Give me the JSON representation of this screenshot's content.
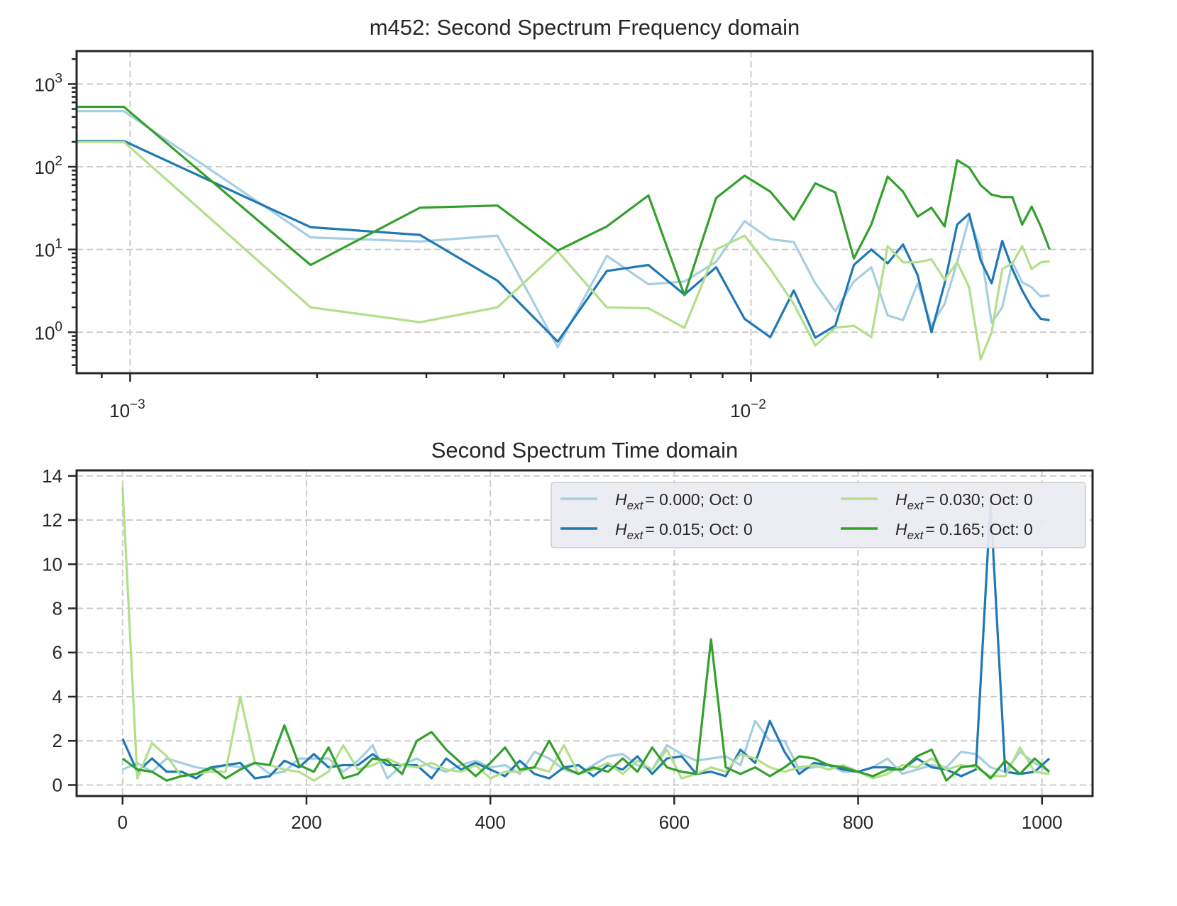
{
  "chart_data": [
    {
      "type": "line",
      "title": "m452: Second Spectrum Frequency domain",
      "xscale": "log",
      "yscale": "log",
      "xlim": [
        0.00082,
        0.0355
      ],
      "ylim": [
        0.32,
        2500
      ],
      "grid": true,
      "x_tick_labels": [
        {
          "value": 0.001,
          "base": "10",
          "exp": "−3"
        },
        {
          "value": 0.01,
          "base": "10",
          "exp": "−2"
        }
      ],
      "y_tick_labels": [
        {
          "value": 1,
          "base": "10",
          "exp": "0"
        },
        {
          "value": 10,
          "base": "10",
          "exp": "1"
        },
        {
          "value": 100,
          "base": "10",
          "exp": "2"
        },
        {
          "value": 1000,
          "base": "10",
          "exp": "3"
        }
      ],
      "x": [
        0.000977,
        0.001953,
        0.00293,
        0.003906,
        0.004883,
        0.005859,
        0.006836,
        0.007813,
        0.008789,
        0.009766,
        0.010742,
        0.011719,
        0.012695,
        0.013672,
        0.014648,
        0.015625,
        0.016602,
        0.017578,
        0.018555,
        0.019531,
        0.020508,
        0.021484,
        0.022461,
        0.023438,
        0.024414,
        0.025391,
        0.026367,
        0.027344,
        0.02832,
        0.029297,
        0.030273
      ],
      "series": [
        {
          "name": "H_ext = 0.000; Oct: 0",
          "color": "#a6cee3",
          "values": [
            470,
            14,
            12.5,
            14.7,
            0.66,
            8.4,
            3.8,
            4.1,
            7.1,
            22,
            13.3,
            12.3,
            3.9,
            1.8,
            4.1,
            6.1,
            1.6,
            1.4,
            3.9,
            1.2,
            2.2,
            7.1,
            24,
            10,
            1.3,
            2.0,
            7,
            4,
            3.5,
            2.7,
            2.8
          ]
        },
        {
          "name": "H_ext = 0.015; Oct: 0",
          "color": "#1f78b4",
          "values": [
            205,
            18.6,
            15,
            4.2,
            0.77,
            5.5,
            6.5,
            2.85,
            6.1,
            1.45,
            0.87,
            3.2,
            0.86,
            1.2,
            6.5,
            10,
            6.8,
            11.5,
            4.9,
            1.0,
            3.9,
            20,
            27,
            7.4,
            3.9,
            12.7,
            5.8,
            3.2,
            2.0,
            1.45,
            1.4
          ]
        },
        {
          "name": "H_ext = 0.030; Oct: 0",
          "color": "#b2df8a",
          "values": [
            200,
            2.0,
            1.32,
            2.0,
            9.5,
            2.0,
            1.95,
            1.13,
            10,
            14.7,
            5.8,
            2.2,
            0.69,
            1.13,
            1.2,
            0.87,
            11,
            7,
            7,
            7.6,
            4.3,
            7,
            3.5,
            0.47,
            1.0,
            5.8,
            6.8,
            11,
            5.8,
            7,
            7.2
          ]
        },
        {
          "name": "H_ext = 0.165; Oct: 0",
          "color": "#33a02c",
          "values": [
            530,
            6.5,
            32,
            34,
            9.7,
            19,
            45,
            2.8,
            42,
            78,
            50,
            23,
            63,
            49,
            7.8,
            20,
            76,
            50,
            25,
            32,
            19,
            120,
            98,
            60,
            46,
            43,
            43,
            20,
            33,
            19,
            10
          ]
        }
      ]
    },
    {
      "type": "line",
      "title": "Second Spectrum Time domain",
      "xlim": [
        -50,
        1055
      ],
      "ylim": [
        -0.5,
        14.25
      ],
      "grid": true,
      "x_step": 16,
      "x_ticks": [
        "0",
        "200",
        "400",
        "600",
        "800",
        "1000"
      ],
      "y_ticks": [
        "0",
        "2",
        "4",
        "6",
        "8",
        "10",
        "12",
        "14"
      ],
      "legend": {
        "placement": "top-right",
        "entries": [
          {
            "symbol": "H",
            "subscript": "ext",
            "text": "=  0.000; Oct: 0",
            "color": "#a6cee3"
          },
          {
            "symbol": "H",
            "subscript": "ext",
            "text": "=  0.015; Oct: 0",
            "color": "#1f78b4"
          },
          {
            "symbol": "H",
            "subscript": "ext",
            "text": "=  0.030; Oct: 0",
            "color": "#b2df8a"
          },
          {
            "symbol": "H",
            "subscript": "ext",
            "text": "=  0.165; Oct: 0",
            "color": "#33a02c"
          }
        ]
      },
      "series": [
        {
          "name": "H_ext = 0.000; Oct: 0",
          "color": "#a6cee3",
          "values": [
            0.7,
            1.0,
            0.6,
            1.2,
            1.0,
            0.8,
            0.7,
            0.9,
            0.8,
            1.0,
            0.5,
            0.6,
            1.2,
            1.2,
            1.2,
            0.6,
            1.1,
            1.8,
            0.3,
            0.9,
            1.2,
            0.8,
            0.6,
            0.9,
            1.1,
            0.8,
            0.9,
            0.5,
            1.5,
            1.2,
            0.7,
            0.5,
            0.9,
            1.3,
            1.4,
            0.9,
            0.7,
            1.8,
            1.4,
            1.1,
            1.2,
            1.3,
            0.9,
            2.9,
            2.0,
            2.0,
            0.7,
            0.8,
            0.9,
            0.6,
            0.6,
            0.8,
            1.2,
            0.5,
            0.7,
            0.9,
            0.8,
            1.5,
            1.4,
            0.8,
            0.6,
            1.5,
            1.0,
            0.6
          ]
        },
        {
          "name": "H_ext = 0.015; Oct: 0",
          "color": "#1f78b4",
          "values": [
            2.1,
            0.6,
            1.2,
            0.6,
            0.6,
            0.3,
            0.8,
            0.9,
            1.0,
            0.3,
            0.4,
            1.1,
            0.8,
            1.4,
            0.8,
            0.9,
            0.9,
            1.4,
            0.9,
            0.9,
            0.9,
            0.3,
            1.2,
            0.7,
            1.0,
            0.7,
            0.4,
            1.1,
            0.5,
            0.3,
            0.8,
            0.9,
            0.4,
            0.9,
            0.7,
            1.3,
            0.5,
            1.2,
            1.3,
            0.5,
            0.6,
            0.4,
            1.6,
            1.0,
            2.9,
            1.5,
            0.5,
            1.0,
            0.9,
            0.7,
            0.6,
            0.8,
            0.8,
            0.7,
            1.2,
            0.8,
            0.7,
            0.4,
            0.7,
            12.8,
            0.6,
            0.5,
            0.6,
            1.2
          ]
        },
        {
          "name": "H_ext = 0.030; Oct: 0",
          "color": "#b2df8a",
          "values": [
            13.5,
            0.3,
            1.9,
            1.3,
            0.4,
            0.5,
            0.6,
            0.6,
            4.0,
            1.0,
            0.9,
            0.7,
            0.6,
            0.2,
            0.6,
            1.8,
            0.7,
            0.9,
            1.2,
            0.9,
            0.8,
            1.0,
            0.7,
            0.6,
            0.9,
            0.3,
            0.6,
            0.6,
            0.8,
            0.6,
            1.8,
            0.5,
            0.7,
            1.0,
            0.5,
            1.1,
            0.7,
            1.6,
            0.3,
            0.5,
            0.8,
            0.6,
            1.4,
            1.2,
            0.8,
            0.6,
            0.8,
            0.9,
            0.7,
            0.9,
            0.6,
            0.3,
            0.5,
            0.9,
            0.8,
            1.2,
            0.7,
            0.9,
            0.8,
            0.4,
            0.4,
            1.7,
            0.6,
            0.5
          ]
        },
        {
          "name": "H_ext = 0.165; Oct: 0",
          "color": "#33a02c",
          "values": [
            1.2,
            0.7,
            0.6,
            0.2,
            0.4,
            0.5,
            0.8,
            0.3,
            0.7,
            1.0,
            0.9,
            2.7,
            0.9,
            0.6,
            1.7,
            0.3,
            0.5,
            1.2,
            1.1,
            0.5,
            2.0,
            2.4,
            1.6,
            1.0,
            0.4,
            1.0,
            1.7,
            0.7,
            0.8,
            2.0,
            0.8,
            0.5,
            0.8,
            0.6,
            1.2,
            0.6,
            1.7,
            0.8,
            0.6,
            0.5,
            6.6,
            0.8,
            0.5,
            0.8,
            0.4,
            0.8,
            1.3,
            1.2,
            0.9,
            0.8,
            0.6,
            0.4,
            0.7,
            0.7,
            1.3,
            1.6,
            0.2,
            0.8,
            0.9,
            0.3,
            1.1,
            0.5,
            1.2,
            0.6
          ]
        }
      ]
    }
  ]
}
